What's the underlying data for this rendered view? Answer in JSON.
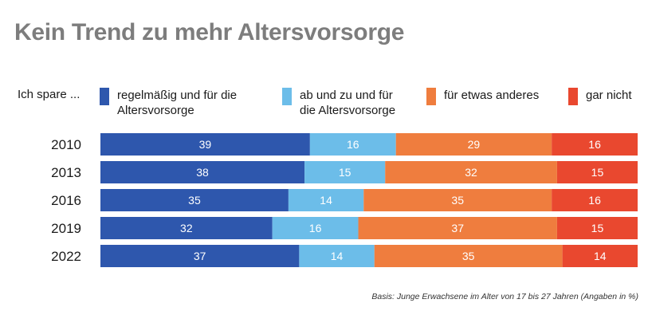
{
  "chart_data": {
    "type": "bar",
    "orientation": "horizontal",
    "stacked": true,
    "title": "Kein Trend zu mehr Altersvorsorge",
    "legend_prefix": "Ich spare ...",
    "legend_position": "top",
    "categories": [
      "2010",
      "2013",
      "2016",
      "2019",
      "2022"
    ],
    "series": [
      {
        "name": "regelmäßig und für die\nAltersvorsorge",
        "color": "#2e57ad",
        "values": [
          39,
          38,
          35,
          32,
          37
        ]
      },
      {
        "name": "ab und zu und für\ndie Altersvorsorge",
        "color": "#6cbde9",
        "values": [
          16,
          15,
          14,
          16,
          14
        ]
      },
      {
        "name": "für etwas anderes",
        "color": "#ef7d3e",
        "values": [
          29,
          32,
          35,
          37,
          35
        ]
      },
      {
        "name": "gar nicht",
        "color": "#e9482f",
        "values": [
          16,
          15,
          16,
          15,
          14
        ]
      }
    ],
    "footnote": "Basis: Junge Erwachsene im Alter von 17 bis 27 Jahren (Angaben in %)"
  }
}
